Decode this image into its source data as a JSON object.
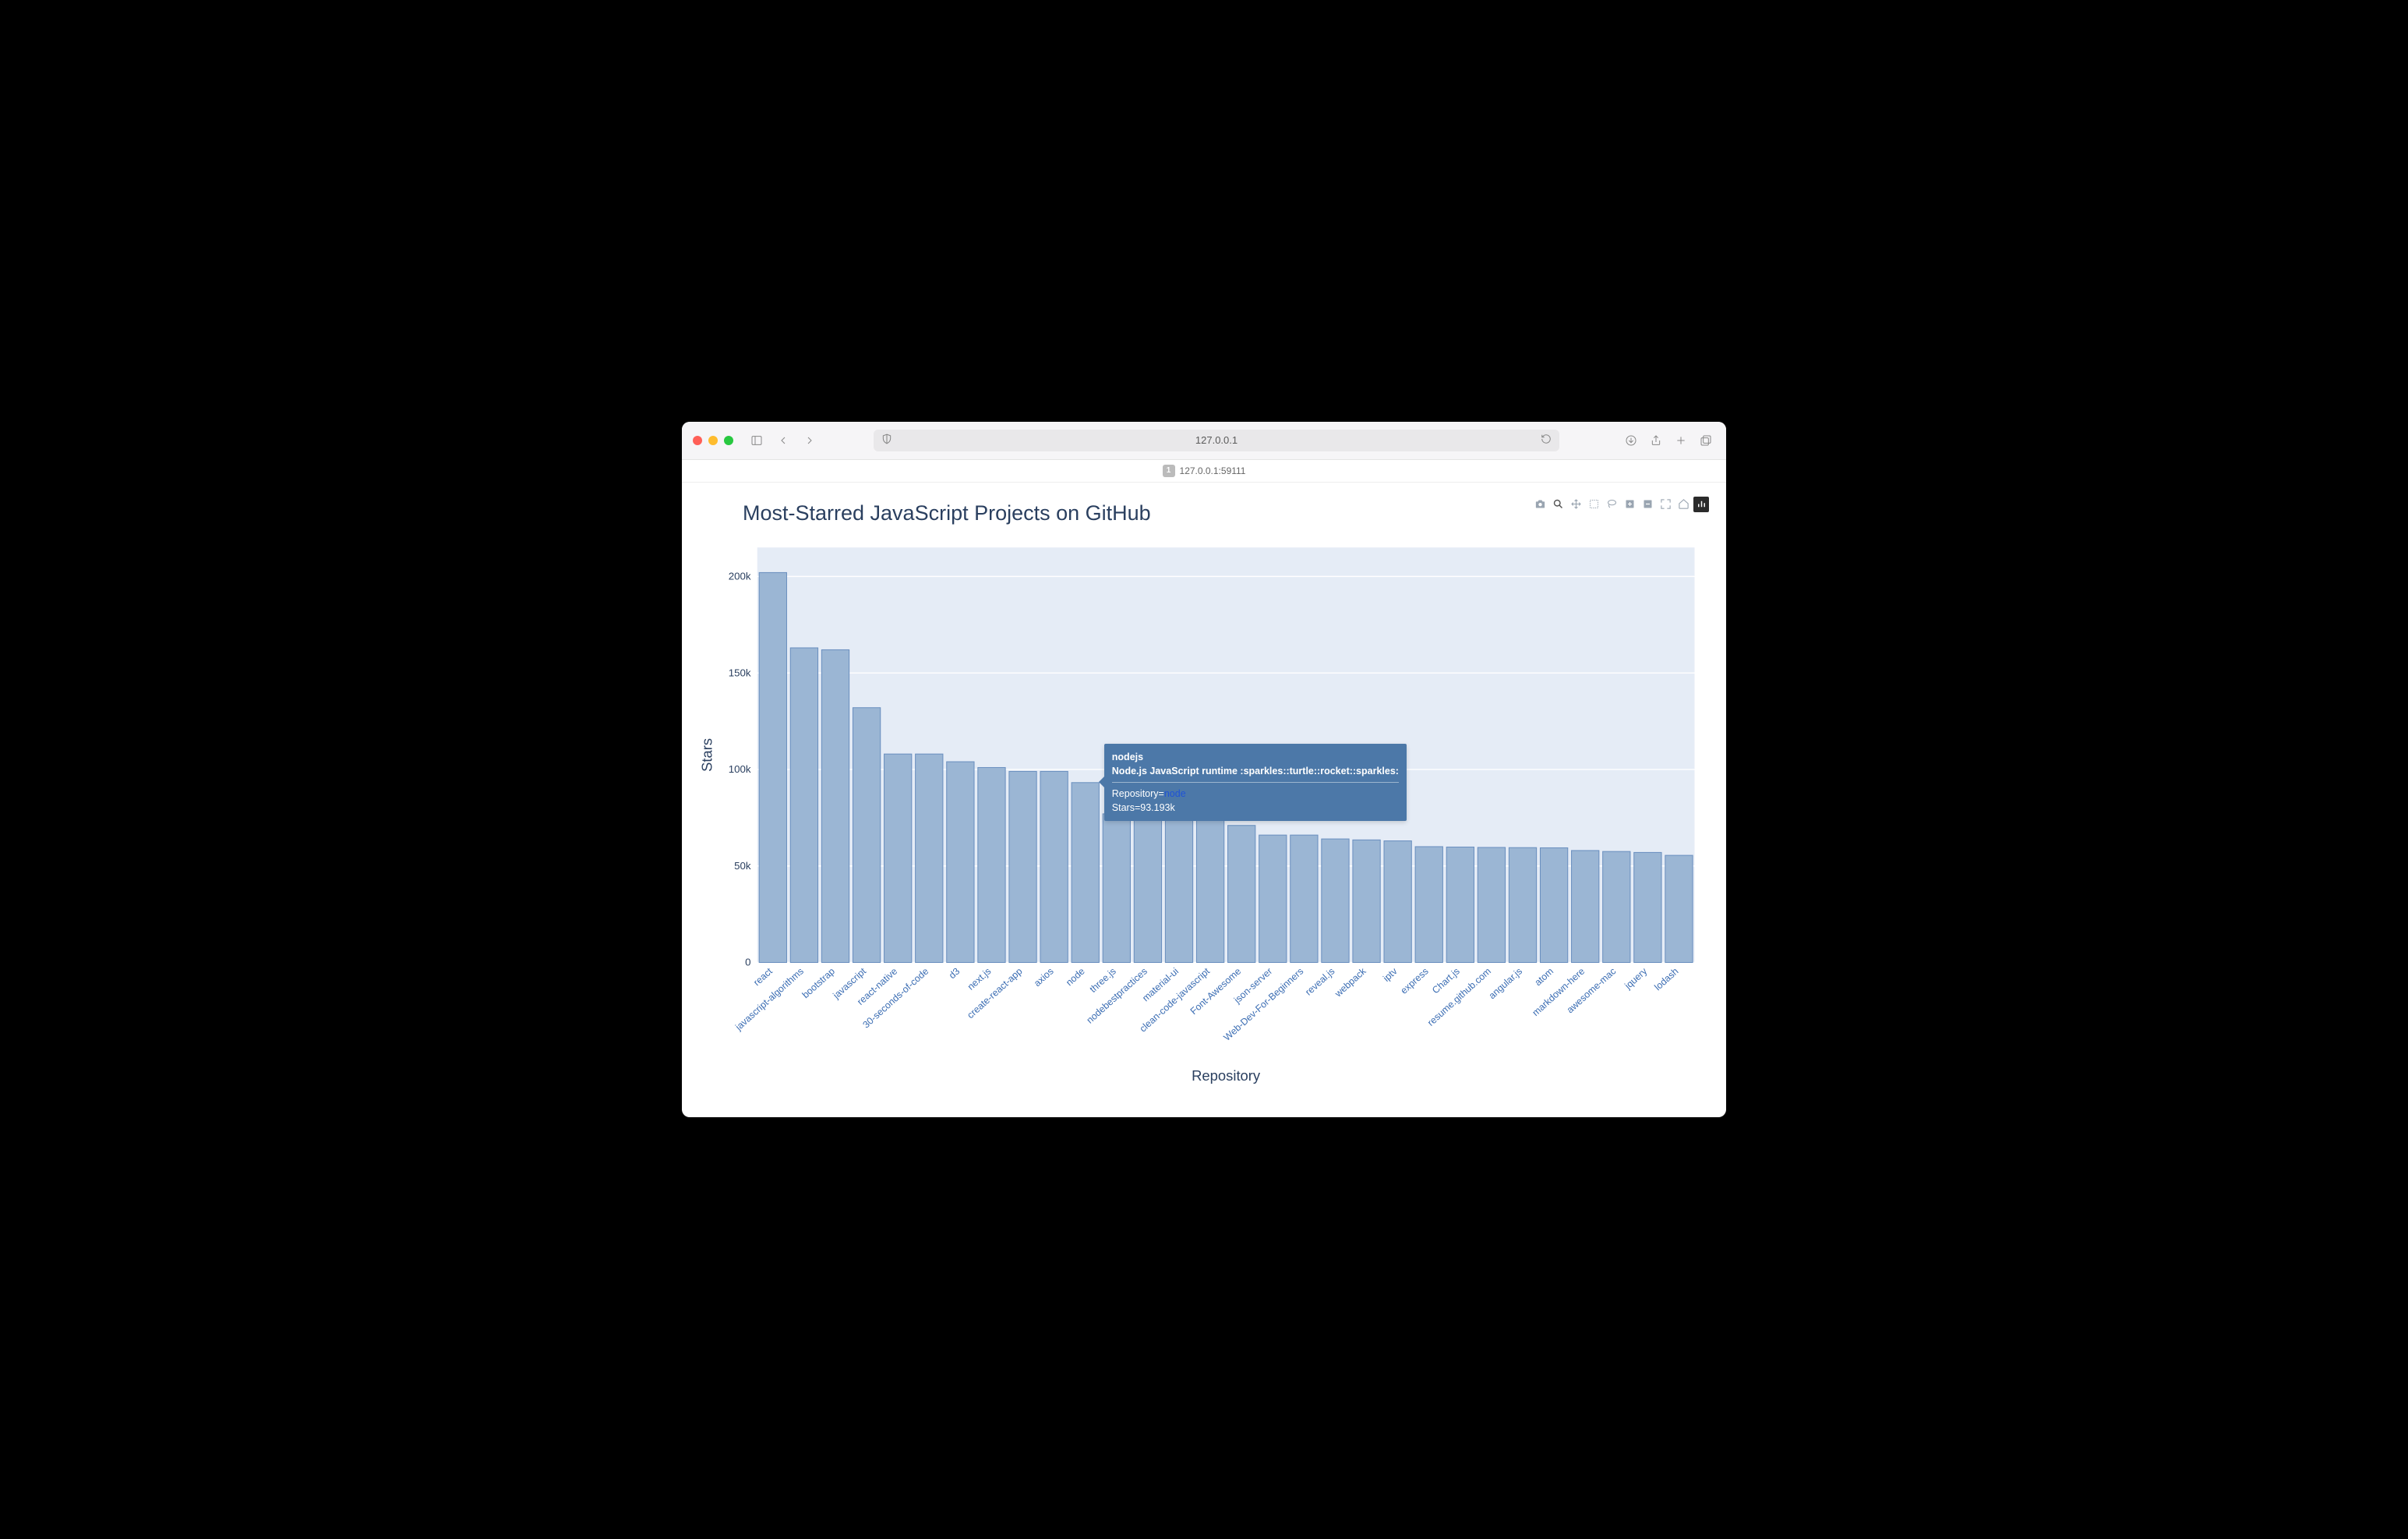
{
  "browser": {
    "address": "127.0.0.1",
    "tab_label": "127.0.0.1:59111",
    "tab_fav": "1"
  },
  "chart": {
    "type": "bar",
    "title": "Most-Starred JavaScript Projects on GitHub",
    "xlabel": "Repository",
    "ylabel": "Stars",
    "title_fontsize": 27,
    "axis_label_fontsize": 18,
    "tick_fontsize": 13,
    "xtick_fontsize": 12,
    "xtick_color": "#3b6db3",
    "plot_bg": "#e5ecf6",
    "page_bg": "#ffffff",
    "bar_fill": "#9bb6d4",
    "bar_stroke": "#6a8fbf",
    "bar_gap": 0.12,
    "y_tick_labels": [
      "0",
      "50k",
      "100k",
      "150k",
      "200k"
    ],
    "y_tick_values": [
      0,
      50000,
      100000,
      150000,
      200000
    ],
    "ylim": [
      0,
      215000
    ],
    "repositories": [
      "react",
      "javascript-algorithms",
      "bootstrap",
      "javascript",
      "react-native",
      "30-seconds-of-code",
      "d3",
      "next.js",
      "create-react-app",
      "axios",
      "node",
      "three.js",
      "nodebestpractices",
      "material-ui",
      "clean-code-javascript",
      "Font-Awesome",
      "json-server",
      "Web-Dev-For-Beginners",
      "reveal.js",
      "webpack",
      "iptv",
      "express",
      "Chart.js",
      "resume.github.com",
      "angular.js",
      "atom",
      "markdown-here",
      "awesome-mac",
      "jquery",
      "lodash"
    ],
    "stars": [
      202000,
      163000,
      162000,
      132000,
      108000,
      108000,
      104000,
      101000,
      99000,
      99000,
      93193,
      77000,
      77000,
      77000,
      78000,
      71000,
      66000,
      66000,
      64000,
      63500,
      63000,
      60000,
      59800,
      59600,
      59500,
      59400,
      58000,
      57500,
      57000,
      55500
    ]
  },
  "tooltip": {
    "owner": "nodejs",
    "desc": "Node.js JavaScript runtime :sparkles::turtle::rocket::sparkles:",
    "repo_label": "Repository=",
    "repo_value": "node",
    "stars_label": "Stars=93.193k",
    "target_index": 10
  },
  "modebar": {
    "items": [
      "camera",
      "zoom",
      "pan",
      "box-select",
      "lasso",
      "zoom-in",
      "zoom-out",
      "autoscale",
      "reset",
      "plotly-logo"
    ]
  }
}
